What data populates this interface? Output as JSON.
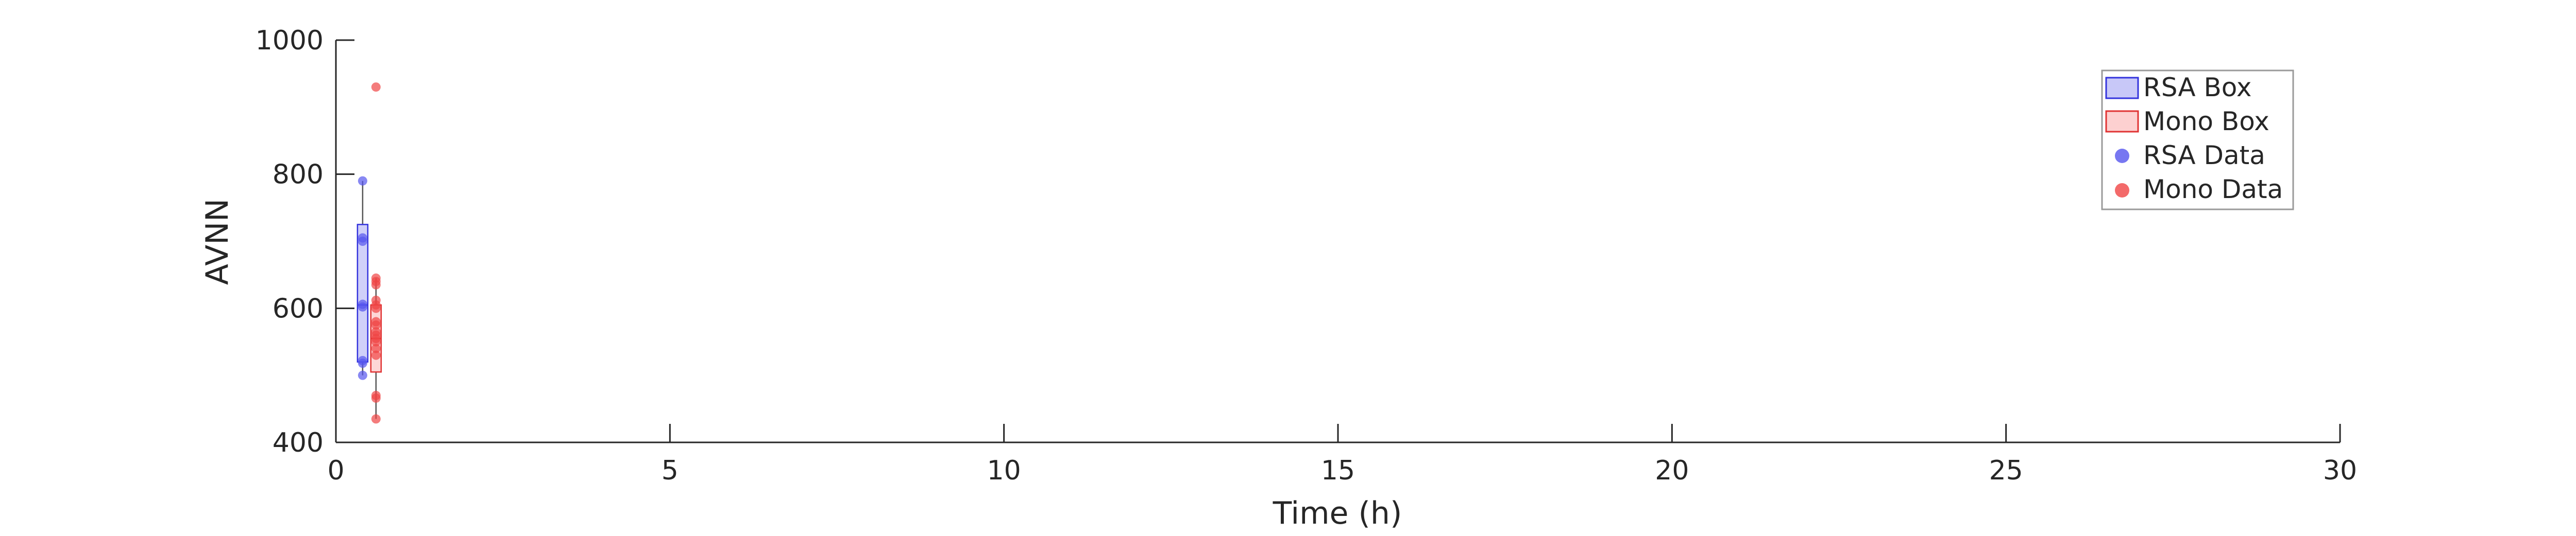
{
  "chart_data": {
    "type": "box",
    "xlabel": "Time (h)",
    "ylabel": "AVNN",
    "xlim": [
      0,
      30
    ],
    "ylim": [
      400,
      1000
    ],
    "xticks": [
      0,
      5,
      10,
      15,
      20,
      25,
      30
    ],
    "yticks": [
      400,
      600,
      800,
      1000
    ],
    "grid": false,
    "legend_position": "top-right",
    "legend": [
      "RSA Box",
      "Mono Box",
      "RSA Data",
      "Mono Data"
    ],
    "colors": {
      "rsa_fill": "#c8c8f8",
      "rsa_edge": "#3333dd",
      "rsa_point": "#5555ee",
      "mono_fill": "#fdd0d0",
      "mono_edge": "#e03333",
      "mono_point": "#f04545",
      "axis": "#262626"
    },
    "series": [
      {
        "name": "RSA",
        "x": 0.4,
        "box": {
          "whisker_low": 500,
          "q1": 520,
          "median": 605,
          "q3": 725,
          "whisker_high": 790
        },
        "points": [
          500,
          518,
          522,
          602,
          606,
          700,
          705,
          790
        ]
      },
      {
        "name": "Mono",
        "x": 0.6,
        "box": {
          "whisker_low": 435,
          "q1": 505,
          "median": 555,
          "q3": 605,
          "whisker_high": 645
        },
        "points": [
          435,
          466,
          470,
          530,
          540,
          550,
          555,
          560,
          565,
          575,
          580,
          600,
          605,
          612,
          635,
          640,
          645,
          930
        ]
      }
    ]
  }
}
